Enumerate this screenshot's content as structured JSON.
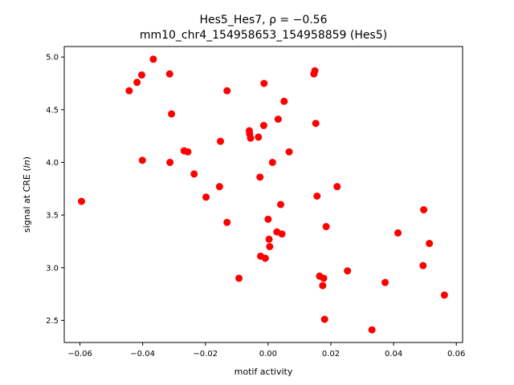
{
  "chart_data": {
    "type": "scatter",
    "title_line1": "Hes5_Hes7, ρ = −0.56",
    "title_line2": "mm10_chr4_154958653_154958859 (Hes5)",
    "xlabel": "motif activity",
    "ylabel_prefix": "signal at CRE (",
    "ylabel_var": "ln",
    "ylabel_suffix": ")",
    "xlim": [
      -0.065,
      0.062
    ],
    "ylim": [
      2.29,
      5.1
    ],
    "xticks": [
      -0.06,
      -0.04,
      -0.02,
      0.0,
      0.02,
      0.04,
      0.06
    ],
    "xtick_labels": [
      "−0.06",
      "−0.04",
      "−0.02",
      "0.00",
      "0.02",
      "0.04",
      "0.06"
    ],
    "yticks": [
      2.5,
      3.0,
      3.5,
      4.0,
      4.5,
      5.0
    ],
    "ytick_labels": [
      "2.5",
      "3.0",
      "3.5",
      "4.0",
      "4.5",
      "5.0"
    ],
    "grid": false,
    "marker_color": "#ff0000",
    "points": [
      {
        "x": -0.0595,
        "y": 3.63
      },
      {
        "x": -0.0443,
        "y": 4.68
      },
      {
        "x": -0.0418,
        "y": 4.76
      },
      {
        "x": -0.0403,
        "y": 4.83
      },
      {
        "x": -0.0366,
        "y": 4.98
      },
      {
        "x": -0.0314,
        "y": 4.84
      },
      {
        "x": -0.0308,
        "y": 4.46
      },
      {
        "x": -0.0401,
        "y": 4.02
      },
      {
        "x": -0.0313,
        "y": 4.0
      },
      {
        "x": -0.0268,
        "y": 4.11
      },
      {
        "x": -0.0256,
        "y": 4.1
      },
      {
        "x": -0.0236,
        "y": 3.89
      },
      {
        "x": -0.0198,
        "y": 3.67
      },
      {
        "x": -0.0155,
        "y": 3.77
      },
      {
        "x": -0.0152,
        "y": 4.2
      },
      {
        "x": -0.0131,
        "y": 4.68
      },
      {
        "x": -0.0131,
        "y": 3.43
      },
      {
        "x": -0.0093,
        "y": 2.9
      },
      {
        "x": -0.006,
        "y": 4.3
      },
      {
        "x": -0.0059,
        "y": 4.27
      },
      {
        "x": -0.0056,
        "y": 4.23
      },
      {
        "x": -0.0031,
        "y": 4.24
      },
      {
        "x": -0.0026,
        "y": 3.86
      },
      {
        "x": -0.0024,
        "y": 3.11
      },
      {
        "x": -0.0014,
        "y": 4.35
      },
      {
        "x": -0.0013,
        "y": 4.75
      },
      {
        "x": -0.0009,
        "y": 3.09
      },
      {
        "x": 0.0,
        "y": 3.46
      },
      {
        "x": 0.0003,
        "y": 3.27
      },
      {
        "x": 0.0005,
        "y": 3.2
      },
      {
        "x": 0.0014,
        "y": 4.0
      },
      {
        "x": 0.0028,
        "y": 3.34
      },
      {
        "x": 0.0032,
        "y": 4.41
      },
      {
        "x": 0.004,
        "y": 3.6
      },
      {
        "x": 0.0044,
        "y": 3.32
      },
      {
        "x": 0.0051,
        "y": 4.58
      },
      {
        "x": 0.0067,
        "y": 4.1
      },
      {
        "x": 0.0146,
        "y": 4.84
      },
      {
        "x": 0.0149,
        "y": 4.87
      },
      {
        "x": 0.0152,
        "y": 4.37
      },
      {
        "x": 0.0156,
        "y": 3.68
      },
      {
        "x": 0.0164,
        "y": 2.92
      },
      {
        "x": 0.0174,
        "y": 2.83
      },
      {
        "x": 0.0177,
        "y": 2.9
      },
      {
        "x": 0.018,
        "y": 2.51
      },
      {
        "x": 0.0185,
        "y": 3.39
      },
      {
        "x": 0.022,
        "y": 3.77
      },
      {
        "x": 0.0253,
        "y": 2.97
      },
      {
        "x": 0.0331,
        "y": 2.41
      },
      {
        "x": 0.0373,
        "y": 2.86
      },
      {
        "x": 0.0414,
        "y": 3.33
      },
      {
        "x": 0.0494,
        "y": 3.02
      },
      {
        "x": 0.0496,
        "y": 3.55
      },
      {
        "x": 0.0514,
        "y": 3.23
      },
      {
        "x": 0.0562,
        "y": 2.74
      }
    ]
  }
}
